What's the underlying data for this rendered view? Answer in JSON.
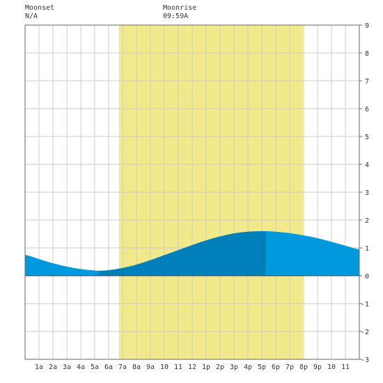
{
  "header": {
    "moonset_label": "Moonset",
    "moonset_time": "N/A",
    "moonrise_label": "Moonrise",
    "moonrise_time": "09:59A"
  },
  "chart_data": {
    "type": "area",
    "title": "",
    "xlabel": "",
    "ylabel": "",
    "x_unit": "hours after midnight",
    "xlim": [
      0,
      24
    ],
    "ylim": [
      -3,
      9
    ],
    "y_ticks": [
      -3,
      -2,
      -1,
      0,
      1,
      2,
      3,
      4,
      5,
      6,
      7,
      8,
      9
    ],
    "x_ticks": [
      {
        "x": 1,
        "label": "1a"
      },
      {
        "x": 2,
        "label": "2a"
      },
      {
        "x": 3,
        "label": "3a"
      },
      {
        "x": 4,
        "label": "4a"
      },
      {
        "x": 5,
        "label": "5a"
      },
      {
        "x": 6,
        "label": "6a"
      },
      {
        "x": 7,
        "label": "7a"
      },
      {
        "x": 8,
        "label": "8a"
      },
      {
        "x": 9,
        "label": "9a"
      },
      {
        "x": 10,
        "label": "10"
      },
      {
        "x": 11,
        "label": "11"
      },
      {
        "x": 12,
        "label": "12"
      },
      {
        "x": 13,
        "label": "1p"
      },
      {
        "x": 14,
        "label": "2p"
      },
      {
        "x": 15,
        "label": "3p"
      },
      {
        "x": 16,
        "label": "4p"
      },
      {
        "x": 17,
        "label": "5p"
      },
      {
        "x": 18,
        "label": "6p"
      },
      {
        "x": 19,
        "label": "7p"
      },
      {
        "x": 20,
        "label": "8p"
      },
      {
        "x": 21,
        "label": "9p"
      },
      {
        "x": 22,
        "label": "10"
      },
      {
        "x": 23,
        "label": "11"
      }
    ],
    "grid": true,
    "daylight": {
      "start": 6.75,
      "end": 19.95,
      "color": "#f2ea8a"
    },
    "rising_tide": {
      "start": 5.3,
      "end": 17.3,
      "color": "#0080bb"
    },
    "tide_color": "#0099dd",
    "series": [
      {
        "x": [
          0,
          1,
          2,
          3,
          4,
          5,
          5.3,
          6,
          7,
          8,
          9,
          10,
          11,
          12,
          13,
          14,
          15,
          16,
          17,
          17.3,
          18,
          19,
          20,
          21,
          22,
          23,
          24
        ],
        "values": [
          0.75,
          0.6,
          0.45,
          0.33,
          0.24,
          0.19,
          0.18,
          0.2,
          0.28,
          0.4,
          0.56,
          0.74,
          0.92,
          1.1,
          1.27,
          1.41,
          1.52,
          1.58,
          1.6,
          1.6,
          1.58,
          1.53,
          1.45,
          1.35,
          1.22,
          1.08,
          0.95
        ]
      }
    ]
  }
}
